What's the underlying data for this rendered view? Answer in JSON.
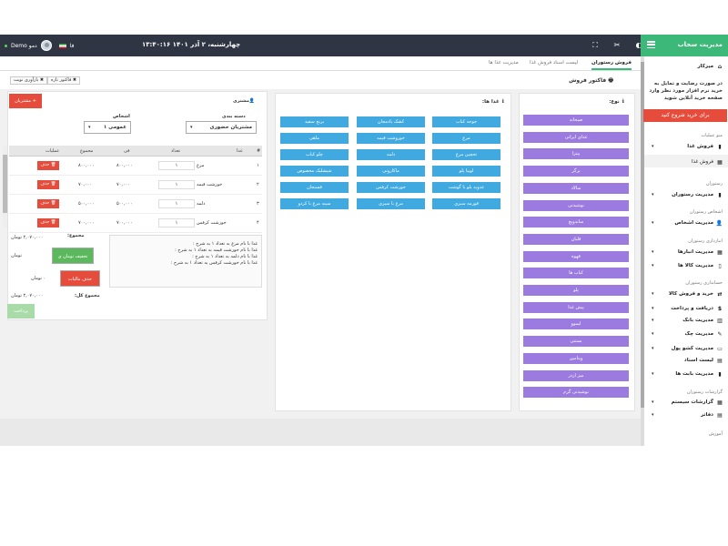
{
  "brand": {
    "title": "مدیریت سحاب"
  },
  "topbar": {
    "date": "چهارشنبه، ۲ آذر ۱۴۰۱",
    "time": "۱۳:۴۰:۱۶",
    "user_name": "Demo دمو",
    "lang": "فا"
  },
  "tabs": [
    {
      "label": "فروش رستوران"
    },
    {
      "label": "لیست اسناد فروش غذا"
    },
    {
      "label": "مدیریت غذا ها"
    }
  ],
  "toolbar": {
    "title": "فاکتور فروش",
    "print_label": "فاکتور تازه",
    "reload_label": "بازآوری نوبت"
  },
  "customer_panel": {
    "customer_label": "مشتری",
    "customers_button": "مشتریان +",
    "category_label": "دسته بندی",
    "category_value": "مشتریان حضوری",
    "persons_label": "اشخاص",
    "persons_value": "عمومی ۱"
  },
  "grid": {
    "headers": [
      "#",
      "غذا",
      "تعداد",
      "فی",
      "مجموع",
      "عملیات"
    ],
    "delete_label": "حذف",
    "rows": [
      {
        "num": "۱",
        "food": "مرغ",
        "qty": "۱",
        "price": "۸۰۰,۰۰۰",
        "total": "۸۰۰,۰۰۰"
      },
      {
        "num": "۲",
        "food": "خورشت قیمه",
        "qty": "۱",
        "price": "۷۰,۰۰۰",
        "total": "۷۰,۰۰۰"
      },
      {
        "num": "۳",
        "food": "دلمه",
        "qty": "۱",
        "price": "۵۰۰,۰۰۰",
        "total": "۵۰۰,۰۰۰"
      },
      {
        "num": "۴",
        "food": "خورشت کرفس",
        "qty": "۱",
        "price": "۷۰۰,۰۰۰",
        "total": "۷۰۰,۰۰۰"
      }
    ]
  },
  "summary": {
    "total_label": "مجموع:",
    "total_value": "۲,۰۷۰,۰۰۰ تومان",
    "discount_button": "تخفیف تومان ی",
    "discount_unit": "تومان",
    "tax_button": "حذف مالیات",
    "tax_value": "۰ تومان",
    "grand_label": "مجموع کل:",
    "grand_value": "۲,۰۷۰,۰۰۰ تومان",
    "pay_button": "پرداخت"
  },
  "notes": [
    "غذا با نام مرغ  به تعداد ۱ به شرح :",
    "غذا با نام خورشت قیمه  به تعداد ۱ به شرح :",
    "غذا با نام دلمه به تعداد ۱ به شرح :",
    "غذا با نام خورشت کرفس  به تعداد ۱ به شرح :"
  ],
  "foods_panel": {
    "title": "غذا ها:",
    "items": [
      "جوجه کباب",
      "کشک بادمجان",
      "برنج سفید",
      "مرغ",
      "خوروشت قیمه",
      "ماهی",
      "تحچین مرغ",
      "دلمه",
      "چلو کباب",
      "لوبیا پلو",
      "ماکارونی",
      "شیشلیک مخصوص",
      "عدویه پلو با گوشت",
      "خورشت کرفس",
      "فسنجان",
      "قورمه سبزی",
      "مرغ با سبزی",
      "سینه مرغ با کردو"
    ]
  },
  "types_panel": {
    "title": "نوع:",
    "items": [
      "صبحانه",
      "غذای ایرانی",
      "پیتزا",
      "برگر",
      "سالاد",
      "نوشیدنی",
      "ساندویچ",
      "قلیان",
      "قهوه",
      "کباب ها",
      "پلو",
      "پیش غذا",
      "لیموو",
      "بستنی",
      "ویتامین",
      "میز اردر",
      "نوشیدنی گرم"
    ]
  },
  "sidebar": {
    "desk": "میزکار",
    "promo": "در صورت رضایت و تمایل به خرید نرم افزار مورد نظر وارد صفحه خرید آنلاین شوید",
    "buy_button": "برای خرید شروع کنید",
    "sections": [
      "منو عملیات",
      "رستوران",
      "اشخاص رستوران",
      "انبارداری رستوران",
      "حسابداری رستوران",
      "گزارشات رستوران",
      "آموزش"
    ],
    "items": [
      "فروش غذا",
      "فروش غذا",
      "مدیریت رستوران",
      "مدیریت اشخاص",
      "مدیریت انبارها",
      "مدیریت کالا ها",
      "خرید و فروش کالا",
      "دریافت و پرداخت",
      "مدیریت بانک",
      "مدیریت چک",
      "مدیریت کشو پول",
      "لیست اسناد",
      "مدیریت بابت ها",
      "گزارشات سیستم",
      "دفاتر"
    ]
  }
}
